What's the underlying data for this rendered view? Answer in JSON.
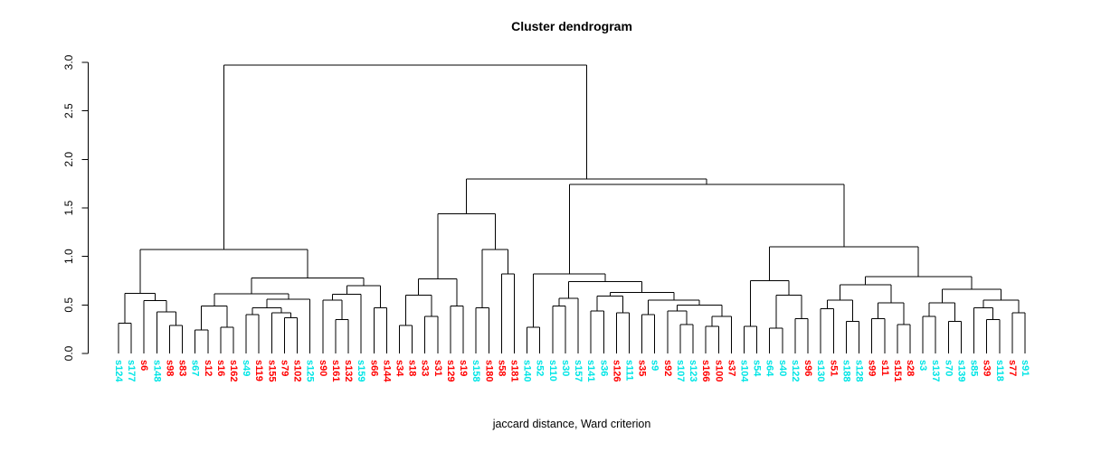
{
  "chart_data": {
    "type": "dendrogram",
    "title": "Cluster dendrogram",
    "xlabel": "jaccard distance, Ward criterion",
    "ylabel": "",
    "ylim": [
      0,
      3
    ],
    "yticks": [
      0.0,
      0.5,
      1.0,
      1.5,
      2.0,
      2.5,
      3.0
    ],
    "grid": false,
    "line_color": "#000000",
    "label_colors": {
      "c": "#00E5E5",
      "r": "#FF0000"
    },
    "leaves": [
      {
        "label": "s124",
        "color": "c"
      },
      {
        "label": "s177",
        "color": "c"
      },
      {
        "label": "s6",
        "color": "r"
      },
      {
        "label": "s148",
        "color": "c"
      },
      {
        "label": "s98",
        "color": "r"
      },
      {
        "label": "s83",
        "color": "r"
      },
      {
        "label": "s67",
        "color": "c"
      },
      {
        "label": "s12",
        "color": "r"
      },
      {
        "label": "s16",
        "color": "r"
      },
      {
        "label": "s162",
        "color": "r"
      },
      {
        "label": "s49",
        "color": "c"
      },
      {
        "label": "s119",
        "color": "r"
      },
      {
        "label": "s155",
        "color": "r"
      },
      {
        "label": "s79",
        "color": "r"
      },
      {
        "label": "s102",
        "color": "r"
      },
      {
        "label": "s125",
        "color": "c"
      },
      {
        "label": "s90",
        "color": "r"
      },
      {
        "label": "s161",
        "color": "r"
      },
      {
        "label": "s132",
        "color": "r"
      },
      {
        "label": "s159",
        "color": "c"
      },
      {
        "label": "s66",
        "color": "r"
      },
      {
        "label": "s144",
        "color": "r"
      },
      {
        "label": "s34",
        "color": "r"
      },
      {
        "label": "s18",
        "color": "r"
      },
      {
        "label": "s33",
        "color": "r"
      },
      {
        "label": "s31",
        "color": "r"
      },
      {
        "label": "s129",
        "color": "r"
      },
      {
        "label": "s19",
        "color": "r"
      },
      {
        "label": "s158",
        "color": "c"
      },
      {
        "label": "s180",
        "color": "r"
      },
      {
        "label": "s58",
        "color": "r"
      },
      {
        "label": "s181",
        "color": "r"
      },
      {
        "label": "s140",
        "color": "c"
      },
      {
        "label": "s52",
        "color": "c"
      },
      {
        "label": "s110",
        "color": "c"
      },
      {
        "label": "s30",
        "color": "c"
      },
      {
        "label": "s157",
        "color": "c"
      },
      {
        "label": "s141",
        "color": "c"
      },
      {
        "label": "s36",
        "color": "c"
      },
      {
        "label": "s126",
        "color": "r"
      },
      {
        "label": "s111",
        "color": "c"
      },
      {
        "label": "s35",
        "color": "r"
      },
      {
        "label": "s9",
        "color": "c"
      },
      {
        "label": "s92",
        "color": "r"
      },
      {
        "label": "s107",
        "color": "c"
      },
      {
        "label": "s123",
        "color": "c"
      },
      {
        "label": "s166",
        "color": "r"
      },
      {
        "label": "s100",
        "color": "r"
      },
      {
        "label": "s37",
        "color": "r"
      },
      {
        "label": "s104",
        "color": "c"
      },
      {
        "label": "s54",
        "color": "c"
      },
      {
        "label": "s64",
        "color": "c"
      },
      {
        "label": "s40",
        "color": "c"
      },
      {
        "label": "s122",
        "color": "c"
      },
      {
        "label": "s96",
        "color": "r"
      },
      {
        "label": "s130",
        "color": "c"
      },
      {
        "label": "s51",
        "color": "r"
      },
      {
        "label": "s188",
        "color": "c"
      },
      {
        "label": "s128",
        "color": "c"
      },
      {
        "label": "s99",
        "color": "r"
      },
      {
        "label": "s11",
        "color": "r"
      },
      {
        "label": "s151",
        "color": "r"
      },
      {
        "label": "s28",
        "color": "r"
      },
      {
        "label": "s3",
        "color": "c"
      },
      {
        "label": "s137",
        "color": "c"
      },
      {
        "label": "s70",
        "color": "c"
      },
      {
        "label": "s139",
        "color": "c"
      },
      {
        "label": "s85",
        "color": "c"
      },
      {
        "label": "s39",
        "color": "r"
      },
      {
        "label": "s118",
        "color": "c"
      },
      {
        "label": "s77",
        "color": "r"
      },
      {
        "label": "s91",
        "color": "c"
      }
    ],
    "tree": [
      2.97,
      [
        1.07,
        [
          0.62,
          [
            0.31,
            0,
            1
          ],
          [
            0.545,
            2,
            [
              0.43,
              3,
              [
                0.29,
                4,
                5
              ]
            ]
          ]
        ],
        [
          0.78,
          [
            0.615,
            [
              0.49,
              [
                0.24,
                6,
                7
              ],
              [
                0.27,
                8,
                9
              ]
            ],
            [
              0.56,
              [
                0.47,
                [
                  0.4,
                  10,
                  11
                ],
                [
                  0.42,
                  12,
                  [
                    0.37,
                    13,
                    14
                  ]
                ]
              ],
              15
            ]
          ],
          [
            0.7,
            [
              0.61,
              [
                0.55,
                16,
                [
                  0.35,
                  17,
                  18
                ]
              ],
              19
            ],
            [
              0.47,
              20,
              21
            ]
          ]
        ]
      ],
      [
        1.8,
        [
          1.44,
          [
            0.77,
            [
              0.6,
              [
                0.29,
                22,
                23
              ],
              [
                0.38,
                24,
                25
              ]
            ],
            [
              0.49,
              26,
              27
            ]
          ],
          [
            1.07,
            [
              0.47,
              28,
              29
            ],
            [
              0.82,
              30,
              31
            ]
          ]
        ],
        [
          1.74,
          [
            0.82,
            [
              0.27,
              32,
              33
            ],
            [
              0.74,
              [
                0.57,
                [
                  0.49,
                  34,
                  35
                ],
                36
              ],
              [
                0.63,
                [
                  0.59,
                  [
                    0.44,
                    37,
                    38
                  ],
                  [
                    0.42,
                    39,
                    40
                  ]
                ],
                [
                  0.55,
                  [
                    0.4,
                    41,
                    42
                  ],
                  [
                    0.5,
                    [
                      0.44,
                      43,
                      [
                        0.3,
                        44,
                        45
                      ]
                    ],
                    [
                      0.38,
                      [
                        0.28,
                        46,
                        47
                      ],
                      48
                    ]
                  ]
                ]
              ]
            ]
          ],
          [
            1.1,
            [
              0.75,
              [
                0.28,
                49,
                50
              ],
              [
                0.6,
                [
                  0.26,
                  51,
                  52
                ],
                [
                  0.36,
                  53,
                  54
                ]
              ]
            ],
            [
              0.79,
              [
                0.71,
                [
                  0.55,
                  [
                    0.46,
                    55,
                    56
                  ],
                  [
                    0.33,
                    57,
                    58
                  ]
                ],
                [
                  0.52,
                  [
                    0.36,
                    59,
                    60
                  ],
                  [
                    0.3,
                    61,
                    62
                  ]
                ]
              ],
              [
                0.66,
                [
                  0.52,
                  [
                    0.38,
                    63,
                    64
                  ],
                  [
                    0.33,
                    65,
                    66
                  ]
                ],
                [
                  0.55,
                  [
                    0.47,
                    67,
                    [
                      0.35,
                      68,
                      69
                    ]
                  ],
                  [
                    0.42,
                    70,
                    71
                  ]
                ]
              ]
            ]
          ]
        ]
      ]
    ]
  }
}
